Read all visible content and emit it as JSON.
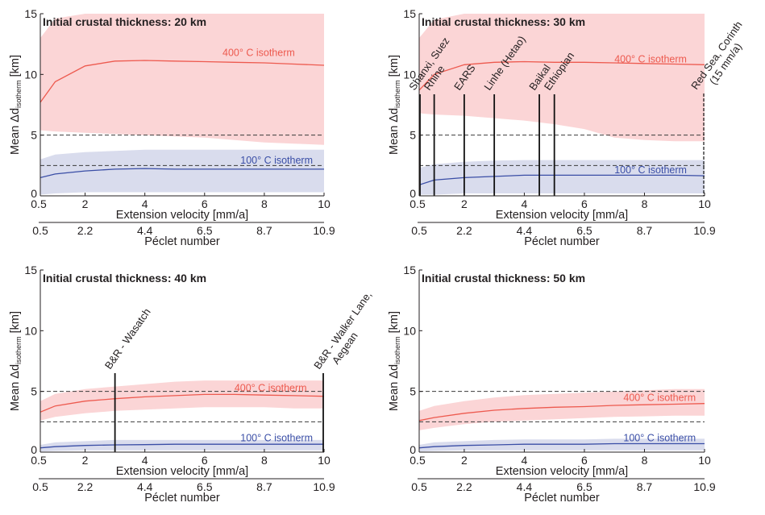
{
  "figure": {
    "panels": [
      {
        "title": "Initial crustal thickness: 20 km"
      },
      {
        "title": "Initial crustal thickness: 30 km"
      },
      {
        "title": "Initial crustal thickness: 40 km"
      },
      {
        "title": "Initial crustal thickness: 50 km"
      }
    ]
  },
  "chart_data": [
    {
      "type": "line",
      "title": "Initial crustal thickness: 20 km",
      "xlabel": "Extension velocity [mm/a]",
      "ylabel": "Mean Δd",
      "ylabel_subscript": "isotherm",
      "ylabel_unit": " [km]",
      "secondary_xlabel": "Péclet number",
      "xlim": [
        0.5,
        10
      ],
      "ylim": [
        0,
        15
      ],
      "xticks": [
        "0.5",
        "2",
        "4",
        "6",
        "8",
        "10"
      ],
      "yticks": [
        "0",
        "5",
        "10",
        "15"
      ],
      "secondary_xticks": [
        "0.5",
        "2.2",
        "4.4",
        "6.5",
        "8.7",
        "10.9"
      ],
      "reference_lines": [
        5,
        2.5
      ],
      "x": [
        0.5,
        1,
        2,
        3,
        4,
        5,
        6,
        7,
        8,
        9,
        10
      ],
      "series": [
        {
          "name": "400° C isotherm",
          "color": "#ed5a4f",
          "band_color": "#fbd5d6",
          "values": [
            7.7,
            9.4,
            10.7,
            11.1,
            11.15,
            11.1,
            11.05,
            11.0,
            10.95,
            10.85,
            10.75
          ],
          "lower": [
            5.4,
            5.3,
            5.2,
            5.1,
            5.0,
            4.9,
            4.8,
            4.6,
            4.4,
            4.3,
            4.2
          ],
          "upper": [
            13.0,
            14.6,
            15,
            15,
            15,
            15,
            15,
            15,
            15,
            15,
            15
          ]
        },
        {
          "name": "100° C isotherm",
          "color": "#3a4ea6",
          "band_color": "#d9dced",
          "values": [
            1.5,
            1.8,
            2.05,
            2.2,
            2.25,
            2.2,
            2.2,
            2.2,
            2.2,
            2.2,
            2.2
          ],
          "lower": [
            0.1,
            0.2,
            0.3,
            0.3,
            0.3,
            0.3,
            0.3,
            0.3,
            0.3,
            0.3,
            0.3
          ],
          "upper": [
            3.0,
            3.4,
            3.6,
            3.7,
            3.8,
            3.8,
            3.8,
            3.8,
            3.8,
            3.8,
            3.8
          ]
        }
      ],
      "annotations": []
    },
    {
      "type": "line",
      "title": "Initial crustal thickness: 30 km",
      "xlabel": "Extension velocity [mm/a]",
      "ylabel": "Mean Δd",
      "ylabel_subscript": "isotherm",
      "ylabel_unit": " [km]",
      "secondary_xlabel": "Péclet number",
      "xlim": [
        0.5,
        10
      ],
      "ylim": [
        0,
        15
      ],
      "xticks": [
        "0.5",
        "2",
        "4",
        "6",
        "8",
        "10"
      ],
      "yticks": [
        "0",
        "5",
        "10",
        "15"
      ],
      "secondary_xticks": [
        "0.5",
        "2.2",
        "4.4",
        "6.5",
        "8.7",
        "10.9"
      ],
      "reference_lines": [
        5,
        2.5
      ],
      "x": [
        0.5,
        1,
        2,
        3,
        4,
        5,
        6,
        7,
        8,
        9,
        10
      ],
      "series": [
        {
          "name": "400° C isotherm",
          "color": "#ed5a4f",
          "band_color": "#fbd5d6",
          "values": [
            8.7,
            10.0,
            10.8,
            11.0,
            11.05,
            11.0,
            11.0,
            10.95,
            10.9,
            10.85,
            10.8
          ],
          "lower": [
            6.8,
            6.7,
            6.6,
            6.4,
            6.2,
            5.9,
            5.5,
            4.8,
            4.6,
            4.5,
            4.5
          ],
          "upper": [
            13.0,
            14.5,
            15,
            15,
            15,
            15,
            15,
            15,
            15,
            15,
            15
          ]
        },
        {
          "name": "100° C isotherm",
          "color": "#3a4ea6",
          "band_color": "#d9dced",
          "values": [
            0.9,
            1.3,
            1.5,
            1.6,
            1.7,
            1.7,
            1.7,
            1.7,
            1.7,
            1.7,
            1.65
          ],
          "lower": [
            0.1,
            0.1,
            0.2,
            0.2,
            0.2,
            0.2,
            0.2,
            0.2,
            0.2,
            0.2,
            0.2
          ],
          "upper": [
            2.3,
            2.6,
            2.8,
            2.9,
            2.95,
            2.95,
            2.95,
            2.95,
            2.95,
            2.95,
            2.95
          ]
        }
      ],
      "annotations": [
        {
          "x": 0.5,
          "text": "Shanxi, Suez",
          "style": "solid"
        },
        {
          "x": 1,
          "text": "Rhine",
          "style": "solid"
        },
        {
          "x": 2,
          "text": "EARS",
          "style": "solid"
        },
        {
          "x": 3,
          "text": "Linhe (Hetao)",
          "style": "solid"
        },
        {
          "x": 4.5,
          "text": "Baikal",
          "style": "solid"
        },
        {
          "x": 5,
          "text": "Ethiopian",
          "style": "solid"
        },
        {
          "x": 10,
          "text": "Red Sea, Corinth",
          "text2": "(15 mm/a)",
          "style": "dashed"
        }
      ]
    },
    {
      "type": "line",
      "title": "Initial crustal thickness: 40 km",
      "xlabel": "Extension velocity [mm/a]",
      "ylabel": "Mean Δd",
      "ylabel_subscript": "isotherm",
      "ylabel_unit": " [km]",
      "secondary_xlabel": "Péclet number",
      "xlim": [
        0.5,
        10
      ],
      "ylim": [
        0,
        15
      ],
      "xticks": [
        "0.5",
        "2",
        "4",
        "6",
        "8",
        "10"
      ],
      "yticks": [
        "0",
        "5",
        "10",
        "15"
      ],
      "secondary_xticks": [
        "0.5",
        "2.2",
        "4.4",
        "6.5",
        "8.7",
        "10.9"
      ],
      "reference_lines": [
        5,
        2.5
      ],
      "x": [
        0.5,
        1,
        2,
        3,
        4,
        5,
        6,
        7,
        8,
        9,
        10
      ],
      "series": [
        {
          "name": "400° C isotherm",
          "color": "#ed5a4f",
          "band_color": "#fbd5d6",
          "values": [
            3.3,
            3.8,
            4.2,
            4.4,
            4.55,
            4.65,
            4.75,
            4.75,
            4.7,
            4.65,
            4.6
          ],
          "lower": [
            2.6,
            2.9,
            3.2,
            3.4,
            3.5,
            3.6,
            3.7,
            3.7,
            3.7,
            3.6,
            3.6
          ],
          "upper": [
            4.2,
            4.8,
            5.2,
            5.4,
            5.6,
            5.8,
            5.9,
            5.9,
            5.9,
            5.9,
            5.9
          ]
        },
        {
          "name": "100° C isotherm",
          "color": "#3a4ea6",
          "band_color": "#d9dced",
          "values": [
            0.35,
            0.45,
            0.55,
            0.6,
            0.62,
            0.65,
            0.65,
            0.65,
            0.65,
            0.65,
            0.65
          ],
          "lower": [
            0.05,
            0.1,
            0.15,
            0.15,
            0.15,
            0.15,
            0.15,
            0.15,
            0.15,
            0.15,
            0.15
          ],
          "upper": [
            0.6,
            0.8,
            0.9,
            1.0,
            1.0,
            1.0,
            1.0,
            1.0,
            1.0,
            1.0,
            1.0
          ]
        }
      ],
      "annotations": [
        {
          "x": 3,
          "text": "B&R - Wasatch",
          "style": "solid"
        },
        {
          "x": 10,
          "text": "B&R - Walker Lane,",
          "text2": "Aegean",
          "style": "solid"
        }
      ]
    },
    {
      "type": "line",
      "title": "Initial crustal thickness: 50 km",
      "xlabel": "Extension velocity [mm/a]",
      "ylabel": "Mean Δd",
      "ylabel_subscript": "isotherm",
      "ylabel_unit": " [km]",
      "secondary_xlabel": "Péclet number",
      "xlim": [
        0.5,
        10
      ],
      "ylim": [
        0,
        15
      ],
      "xticks": [
        "0.5",
        "2",
        "4",
        "6",
        "8",
        "10"
      ],
      "yticks": [
        "0",
        "5",
        "10",
        "15"
      ],
      "secondary_xticks": [
        "0.5",
        "2.2",
        "4.4",
        "6.5",
        "8.7",
        "10.9"
      ],
      "reference_lines": [
        5,
        2.5
      ],
      "x": [
        0.5,
        1,
        2,
        3,
        4,
        5,
        6,
        7,
        8,
        9,
        10
      ],
      "series": [
        {
          "name": "400° C isotherm",
          "color": "#ed5a4f",
          "band_color": "#fbd5d6",
          "values": [
            2.6,
            2.85,
            3.2,
            3.45,
            3.6,
            3.7,
            3.75,
            3.85,
            3.9,
            3.95,
            4.0
          ],
          "lower": [
            1.8,
            2.0,
            2.3,
            2.5,
            2.6,
            2.7,
            2.8,
            2.9,
            2.95,
            3.0,
            3.0
          ],
          "upper": [
            3.4,
            3.8,
            4.2,
            4.5,
            4.7,
            4.8,
            4.9,
            5.0,
            5.1,
            5.2,
            5.2
          ]
        },
        {
          "name": "100° C isotherm",
          "color": "#3a4ea6",
          "band_color": "#d9dced",
          "values": [
            0.35,
            0.45,
            0.55,
            0.6,
            0.65,
            0.65,
            0.65,
            0.7,
            0.7,
            0.7,
            0.7
          ],
          "lower": [
            0.05,
            0.1,
            0.15,
            0.15,
            0.15,
            0.15,
            0.15,
            0.15,
            0.15,
            0.15,
            0.15
          ],
          "upper": [
            0.6,
            0.8,
            0.9,
            1.0,
            1.05,
            1.05,
            1.05,
            1.1,
            1.1,
            1.1,
            1.1
          ]
        }
      ],
      "annotations": []
    }
  ]
}
